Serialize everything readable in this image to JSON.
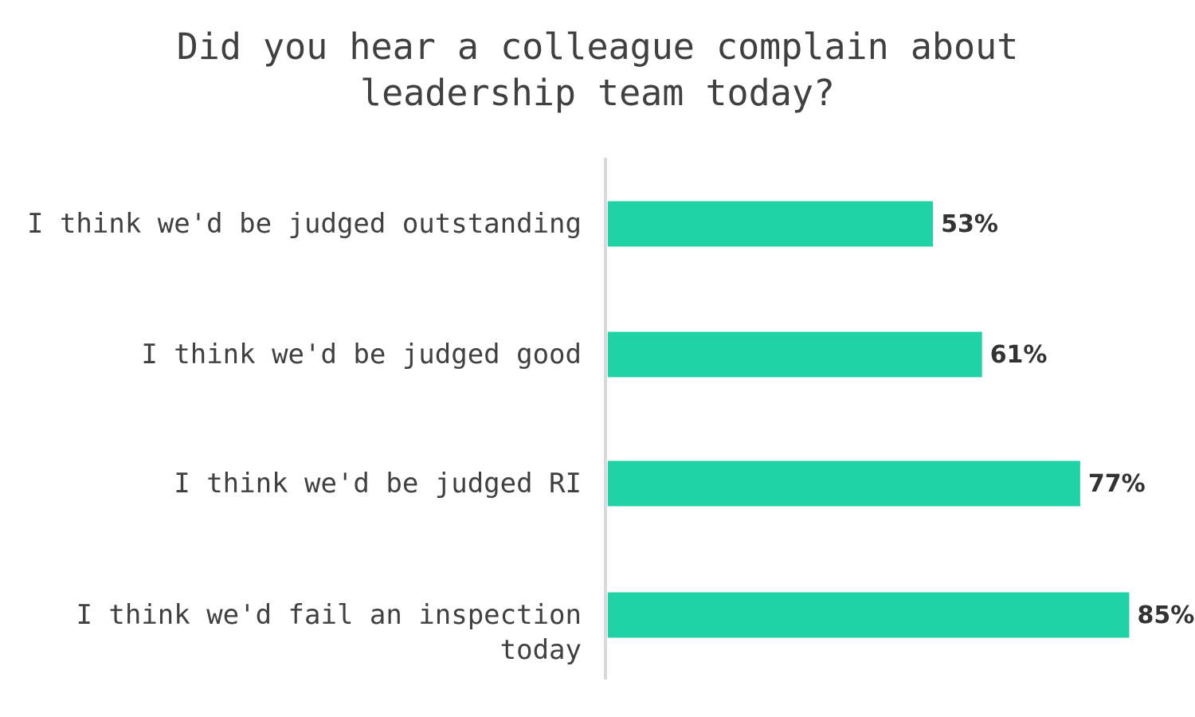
{
  "chart_data": {
    "type": "bar",
    "orientation": "horizontal",
    "title": "Did you hear a colleague complain about leadership team today?",
    "categories": [
      "I think we'd be judged outstanding",
      "I think we'd be judged good",
      "I think we'd be judged RI",
      "I think we'd fail an inspection today"
    ],
    "values": [
      53,
      61,
      77,
      85
    ],
    "value_labels": [
      "53%",
      "61%",
      "77%",
      "85%"
    ],
    "color": "#20d3a6"
  }
}
